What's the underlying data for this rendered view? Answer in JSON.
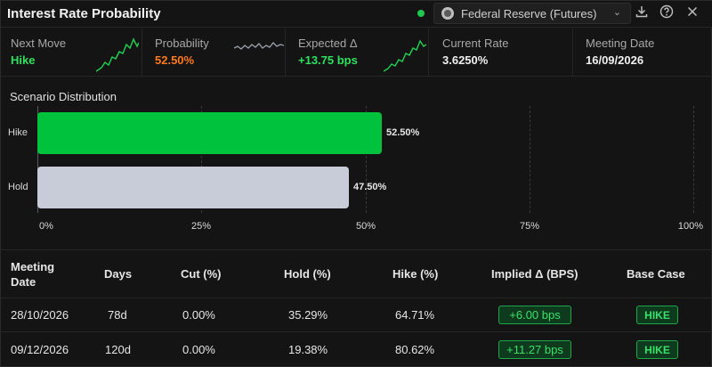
{
  "header": {
    "title": "Interest Rate Probability",
    "source_label": "Federal Reserve (Futures)",
    "icons": [
      "download-icon",
      "help-icon",
      "close-icon"
    ]
  },
  "stats": [
    {
      "label": "Next Move",
      "value": "Hike",
      "color": "#2ee05e"
    },
    {
      "label": "Probability",
      "value": "52.50%",
      "color": "#ff7a1a"
    },
    {
      "label": "Expected Δ",
      "value": "+13.75 bps",
      "color": "#2ee05e"
    },
    {
      "label": "Current Rate",
      "value": "3.6250%",
      "color": "#f0f0f0"
    },
    {
      "label": "Meeting Date",
      "value": "16/09/2026",
      "color": "#f0f0f0"
    }
  ],
  "chart_data": {
    "type": "bar",
    "orientation": "horizontal",
    "title": "Scenario Distribution",
    "categories": [
      "Hike",
      "Hold"
    ],
    "values": [
      52.5,
      47.5
    ],
    "value_labels": [
      "52.50%",
      "47.50%"
    ],
    "colors": [
      "#00c23c",
      "#c7ccd8"
    ],
    "xlim": [
      0,
      100
    ],
    "xticks": [
      "0%",
      "25%",
      "50%",
      "75%",
      "100%"
    ],
    "grid": true
  },
  "table": {
    "headers": [
      "Meeting Date",
      "Days",
      "Cut (%)",
      "Hold (%)",
      "Hike (%)",
      "Implied Δ (BPS)",
      "Base Case"
    ],
    "rows": [
      {
        "date": "28/10/2026",
        "days": "78d",
        "cut": "0.00%",
        "hold": "35.29%",
        "hike": "64.71%",
        "implied": "+6.00 bps",
        "base": "HIKE"
      },
      {
        "date": "09/12/2026",
        "days": "120d",
        "cut": "0.00%",
        "hold": "19.38%",
        "hike": "80.62%",
        "implied": "+11.27 bps",
        "base": "HIKE"
      }
    ]
  }
}
